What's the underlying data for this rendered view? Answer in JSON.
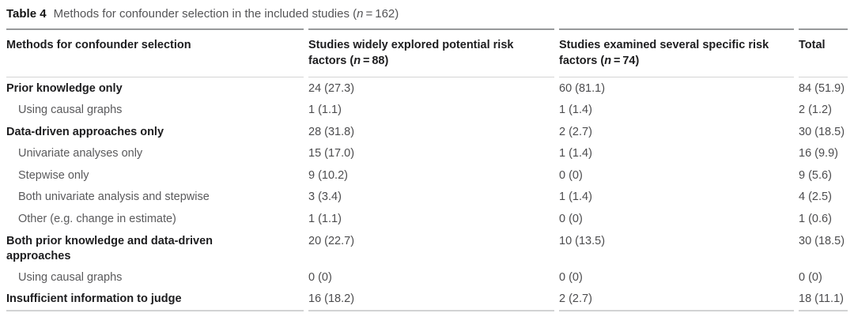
{
  "caption": {
    "label": "Table 4",
    "text_pre": "Methods for confounder selection in the included studies (",
    "n_symbol": "n",
    "text_post": " = 162)"
  },
  "table": {
    "columns": {
      "col1": {
        "label": "Methods for confounder selection"
      },
      "col2": {
        "text_pre": "Studies widely explored potential risk factors (",
        "n_symbol": "n",
        "text_post": " = 88)"
      },
      "col3": {
        "text_pre": "Studies examined several specific risk factors (",
        "n_symbol": "n",
        "text_post": " = 74)"
      },
      "col4": {
        "label": "Total"
      }
    },
    "rows": [
      {
        "label": "Prior knowledge only",
        "level": "group",
        "widely": "24 (27.3)",
        "specific": "60 (81.1)",
        "total": "84 (51.9)"
      },
      {
        "label": "Using causal graphs",
        "level": "sub",
        "widely": "1 (1.1)",
        "specific": "1 (1.4)",
        "total": "2 (1.2)"
      },
      {
        "label": "Data-driven approaches only",
        "level": "group",
        "widely": "28 (31.8)",
        "specific": "2 (2.7)",
        "total": "30 (18.5)"
      },
      {
        "label": "Univariate analyses only",
        "level": "sub",
        "widely": "15 (17.0)",
        "specific": "1 (1.4)",
        "total": "16 (9.9)"
      },
      {
        "label": "Stepwise only",
        "level": "sub",
        "widely": "9 (10.2)",
        "specific": "0 (0)",
        "total": "9 (5.6)"
      },
      {
        "label": "Both univariate analysis and stepwise",
        "level": "sub",
        "widely": "3 (3.4)",
        "specific": "1 (1.4)",
        "total": "4 (2.5)"
      },
      {
        "label": "Other (e.g. change in estimate)",
        "level": "sub",
        "widely": "1 (1.1)",
        "specific": "0 (0)",
        "total": "1 (0.6)"
      },
      {
        "label": "Both prior knowledge and data-driven approaches",
        "level": "group",
        "widely": "20 (22.7)",
        "specific": "10 (13.5)",
        "total": "30 (18.5)"
      },
      {
        "label": "Using causal graphs",
        "level": "sub",
        "widely": "0 (0)",
        "specific": "0 (0)",
        "total": "0 (0)"
      },
      {
        "label": "Insufficient information to judge",
        "level": "group",
        "widely": "16 (18.2)",
        "specific": "2 (2.7)",
        "total": "18 (11.1)"
      }
    ]
  }
}
